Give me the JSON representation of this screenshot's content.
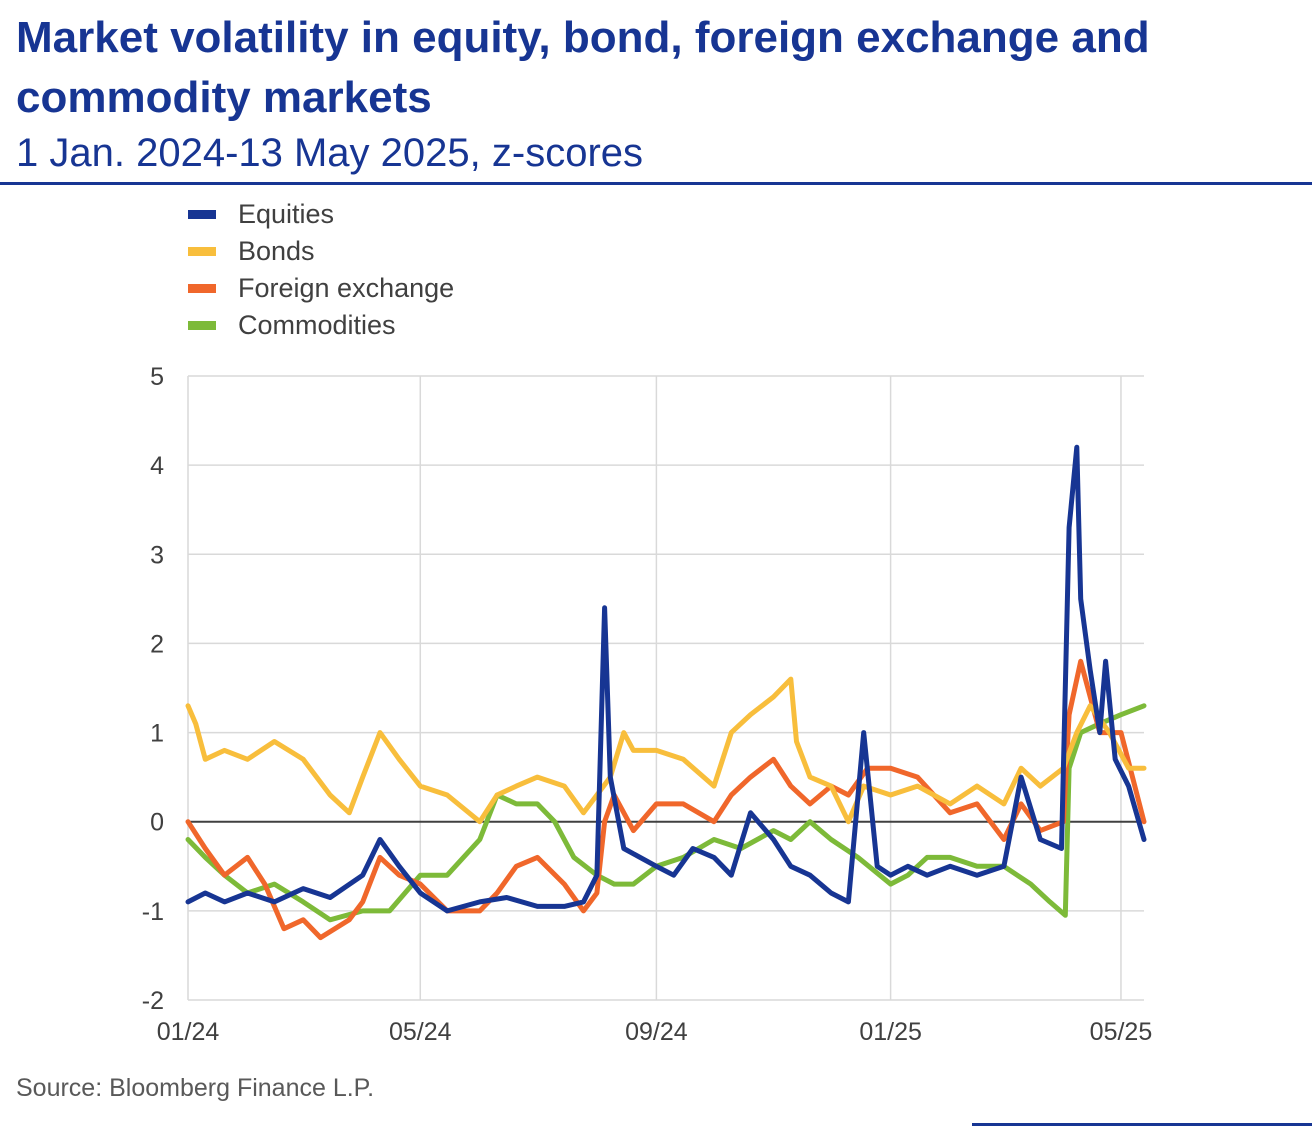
{
  "title": "Market volatility in equity, bond, foreign exchange and commodity markets",
  "subtitle": "1 Jan. 2024-13 May 2025, z-scores",
  "source": "Source: Bloomberg Finance L.P.",
  "colors": {
    "accent": "#173593",
    "equities": "#173593",
    "bonds": "#F8BE3C",
    "foreign_exchange": "#F0672B",
    "commodities": "#7DBA39",
    "grid": "#D9D9D9",
    "zero_line": "#404040"
  },
  "chart_data": {
    "type": "line",
    "title": "Market volatility in equity, bond, foreign exchange and commodity markets",
    "subtitle": "1 Jan. 2024-13 May 2025, z-scores",
    "xlim": [
      "2024-01-01",
      "2025-05-13"
    ],
    "ylim": [
      -2,
      5
    ],
    "yticks": [
      5,
      4,
      3,
      2,
      1,
      0,
      -1,
      -2
    ],
    "xticks": [
      {
        "date": "2024-01-01",
        "label": "01/24"
      },
      {
        "date": "2024-05-01",
        "label": "05/24"
      },
      {
        "date": "2024-09-01",
        "label": "09/24"
      },
      {
        "date": "2025-01-01",
        "label": "01/25"
      },
      {
        "date": "2025-05-01",
        "label": "05/25"
      }
    ],
    "grid": "vertical and horizontal",
    "legend": "top-left",
    "series": [
      {
        "name": "Equities",
        "color": "#173593",
        "points": [
          [
            "2024-01-01",
            -0.9
          ],
          [
            "2024-01-10",
            -0.8
          ],
          [
            "2024-01-20",
            -0.9
          ],
          [
            "2024-02-01",
            -0.8
          ],
          [
            "2024-02-15",
            -0.9
          ],
          [
            "2024-03-01",
            -0.75
          ],
          [
            "2024-03-15",
            -0.85
          ],
          [
            "2024-04-01",
            -0.6
          ],
          [
            "2024-04-10",
            -0.2
          ],
          [
            "2024-04-20",
            -0.5
          ],
          [
            "2024-05-01",
            -0.8
          ],
          [
            "2024-05-15",
            -1.0
          ],
          [
            "2024-06-01",
            -0.9
          ],
          [
            "2024-06-15",
            -0.85
          ],
          [
            "2024-07-01",
            -0.95
          ],
          [
            "2024-07-15",
            -0.95
          ],
          [
            "2024-07-25",
            -0.9
          ],
          [
            "2024-08-01",
            -0.6
          ],
          [
            "2024-08-05",
            2.4
          ],
          [
            "2024-08-08",
            0.5
          ],
          [
            "2024-08-15",
            -0.3
          ],
          [
            "2024-09-01",
            -0.5
          ],
          [
            "2024-09-10",
            -0.6
          ],
          [
            "2024-09-20",
            -0.3
          ],
          [
            "2024-10-01",
            -0.4
          ],
          [
            "2024-10-10",
            -0.6
          ],
          [
            "2024-10-20",
            0.1
          ],
          [
            "2024-11-01",
            -0.2
          ],
          [
            "2024-11-10",
            -0.5
          ],
          [
            "2024-11-20",
            -0.6
          ],
          [
            "2024-12-01",
            -0.8
          ],
          [
            "2024-12-10",
            -0.9
          ],
          [
            "2024-12-18",
            1.0
          ],
          [
            "2024-12-25",
            -0.5
          ],
          [
            "2025-01-01",
            -0.6
          ],
          [
            "2025-01-10",
            -0.5
          ],
          [
            "2025-01-20",
            -0.6
          ],
          [
            "2025-02-01",
            -0.5
          ],
          [
            "2025-02-15",
            -0.6
          ],
          [
            "2025-03-01",
            -0.5
          ],
          [
            "2025-03-10",
            0.5
          ],
          [
            "2025-03-20",
            -0.2
          ],
          [
            "2025-03-31",
            -0.3
          ],
          [
            "2025-04-04",
            3.3
          ],
          [
            "2025-04-08",
            4.2
          ],
          [
            "2025-04-10",
            2.5
          ],
          [
            "2025-04-15",
            1.7
          ],
          [
            "2025-04-20",
            1.0
          ],
          [
            "2025-04-23",
            1.8
          ],
          [
            "2025-04-28",
            0.7
          ],
          [
            "2025-05-05",
            0.4
          ],
          [
            "2025-05-13",
            -0.2
          ]
        ]
      },
      {
        "name": "Bonds",
        "color": "#F8BE3C",
        "points": [
          [
            "2024-01-01",
            1.3
          ],
          [
            "2024-01-05",
            1.1
          ],
          [
            "2024-01-10",
            0.7
          ],
          [
            "2024-01-20",
            0.8
          ],
          [
            "2024-02-01",
            0.7
          ],
          [
            "2024-02-15",
            0.9
          ],
          [
            "2024-03-01",
            0.7
          ],
          [
            "2024-03-15",
            0.3
          ],
          [
            "2024-03-25",
            0.1
          ],
          [
            "2024-04-01",
            0.5
          ],
          [
            "2024-04-10",
            1.0
          ],
          [
            "2024-04-20",
            0.7
          ],
          [
            "2024-05-01",
            0.4
          ],
          [
            "2024-05-15",
            0.3
          ],
          [
            "2024-06-01",
            0.0
          ],
          [
            "2024-06-10",
            0.3
          ],
          [
            "2024-06-20",
            0.4
          ],
          [
            "2024-07-01",
            0.5
          ],
          [
            "2024-07-15",
            0.4
          ],
          [
            "2024-07-25",
            0.1
          ],
          [
            "2024-08-01",
            0.3
          ],
          [
            "2024-08-08",
            0.5
          ],
          [
            "2024-08-15",
            1.0
          ],
          [
            "2024-08-20",
            0.8
          ],
          [
            "2024-09-01",
            0.8
          ],
          [
            "2024-09-15",
            0.7
          ],
          [
            "2024-10-01",
            0.4
          ],
          [
            "2024-10-10",
            1.0
          ],
          [
            "2024-10-20",
            1.2
          ],
          [
            "2024-11-01",
            1.4
          ],
          [
            "2024-11-10",
            1.6
          ],
          [
            "2024-11-13",
            0.9
          ],
          [
            "2024-11-20",
            0.5
          ],
          [
            "2024-12-01",
            0.4
          ],
          [
            "2024-12-10",
            0.0
          ],
          [
            "2024-12-18",
            0.4
          ],
          [
            "2025-01-01",
            0.3
          ],
          [
            "2025-01-15",
            0.4
          ],
          [
            "2025-02-01",
            0.2
          ],
          [
            "2025-02-15",
            0.4
          ],
          [
            "2025-03-01",
            0.2
          ],
          [
            "2025-03-10",
            0.6
          ],
          [
            "2025-03-20",
            0.4
          ],
          [
            "2025-04-01",
            0.6
          ],
          [
            "2025-04-08",
            1.0
          ],
          [
            "2025-04-15",
            1.3
          ],
          [
            "2025-04-25",
            1.0
          ],
          [
            "2025-05-05",
            0.6
          ],
          [
            "2025-05-13",
            0.6
          ]
        ]
      },
      {
        "name": "Foreign exchange",
        "color": "#F0672B",
        "points": [
          [
            "2024-01-01",
            0.0
          ],
          [
            "2024-01-10",
            -0.3
          ],
          [
            "2024-01-20",
            -0.6
          ],
          [
            "2024-02-01",
            -0.4
          ],
          [
            "2024-02-10",
            -0.7
          ],
          [
            "2024-02-20",
            -1.2
          ],
          [
            "2024-03-01",
            -1.1
          ],
          [
            "2024-03-10",
            -1.3
          ],
          [
            "2024-03-25",
            -1.1
          ],
          [
            "2024-04-01",
            -0.9
          ],
          [
            "2024-04-10",
            -0.4
          ],
          [
            "2024-04-20",
            -0.6
          ],
          [
            "2024-05-01",
            -0.7
          ],
          [
            "2024-05-15",
            -1.0
          ],
          [
            "2024-06-01",
            -1.0
          ],
          [
            "2024-06-10",
            -0.8
          ],
          [
            "2024-06-20",
            -0.5
          ],
          [
            "2024-07-01",
            -0.4
          ],
          [
            "2024-07-15",
            -0.7
          ],
          [
            "2024-07-25",
            -1.0
          ],
          [
            "2024-08-01",
            -0.8
          ],
          [
            "2024-08-05",
            0.0
          ],
          [
            "2024-08-10",
            0.3
          ],
          [
            "2024-08-20",
            -0.1
          ],
          [
            "2024-09-01",
            0.2
          ],
          [
            "2024-09-15",
            0.2
          ],
          [
            "2024-10-01",
            0.0
          ],
          [
            "2024-10-10",
            0.3
          ],
          [
            "2024-10-20",
            0.5
          ],
          [
            "2024-11-01",
            0.7
          ],
          [
            "2024-11-10",
            0.4
          ],
          [
            "2024-11-20",
            0.2
          ],
          [
            "2024-12-01",
            0.4
          ],
          [
            "2024-12-10",
            0.3
          ],
          [
            "2024-12-20",
            0.6
          ],
          [
            "2025-01-01",
            0.6
          ],
          [
            "2025-01-15",
            0.5
          ],
          [
            "2025-02-01",
            0.1
          ],
          [
            "2025-02-15",
            0.2
          ],
          [
            "2025-03-01",
            -0.2
          ],
          [
            "2025-03-10",
            0.2
          ],
          [
            "2025-03-20",
            -0.1
          ],
          [
            "2025-04-01",
            0.0
          ],
          [
            "2025-04-04",
            1.2
          ],
          [
            "2025-04-10",
            1.8
          ],
          [
            "2025-04-20",
            1.0
          ],
          [
            "2025-05-01",
            1.0
          ],
          [
            "2025-05-13",
            0.0
          ]
        ]
      },
      {
        "name": "Commodities",
        "color": "#7DBA39",
        "points": [
          [
            "2024-01-01",
            -0.2
          ],
          [
            "2024-01-10",
            -0.4
          ],
          [
            "2024-01-20",
            -0.6
          ],
          [
            "2024-02-01",
            -0.8
          ],
          [
            "2024-02-15",
            -0.7
          ],
          [
            "2024-03-01",
            -0.9
          ],
          [
            "2024-03-15",
            -1.1
          ],
          [
            "2024-04-01",
            -1.0
          ],
          [
            "2024-04-15",
            -1.0
          ],
          [
            "2024-05-01",
            -0.6
          ],
          [
            "2024-05-15",
            -0.6
          ],
          [
            "2024-06-01",
            -0.2
          ],
          [
            "2024-06-10",
            0.3
          ],
          [
            "2024-06-20",
            0.2
          ],
          [
            "2024-07-01",
            0.2
          ],
          [
            "2024-07-10",
            0.0
          ],
          [
            "2024-07-20",
            -0.4
          ],
          [
            "2024-08-01",
            -0.6
          ],
          [
            "2024-08-10",
            -0.7
          ],
          [
            "2024-08-20",
            -0.7
          ],
          [
            "2024-09-01",
            -0.5
          ],
          [
            "2024-09-15",
            -0.4
          ],
          [
            "2024-10-01",
            -0.2
          ],
          [
            "2024-10-15",
            -0.3
          ],
          [
            "2024-11-01",
            -0.1
          ],
          [
            "2024-11-10",
            -0.2
          ],
          [
            "2024-11-20",
            0.0
          ],
          [
            "2024-12-01",
            -0.2
          ],
          [
            "2024-12-15",
            -0.4
          ],
          [
            "2025-01-01",
            -0.7
          ],
          [
            "2025-01-10",
            -0.6
          ],
          [
            "2025-01-20",
            -0.4
          ],
          [
            "2025-02-01",
            -0.4
          ],
          [
            "2025-02-15",
            -0.5
          ],
          [
            "2025-03-01",
            -0.5
          ],
          [
            "2025-03-15",
            -0.7
          ],
          [
            "2025-03-25",
            -0.9
          ],
          [
            "2025-04-02",
            -1.05
          ],
          [
            "2025-04-04",
            0.6
          ],
          [
            "2025-04-10",
            1.0
          ],
          [
            "2025-04-20",
            1.1
          ],
          [
            "2025-05-01",
            1.2
          ],
          [
            "2025-05-13",
            1.3
          ]
        ]
      }
    ]
  }
}
